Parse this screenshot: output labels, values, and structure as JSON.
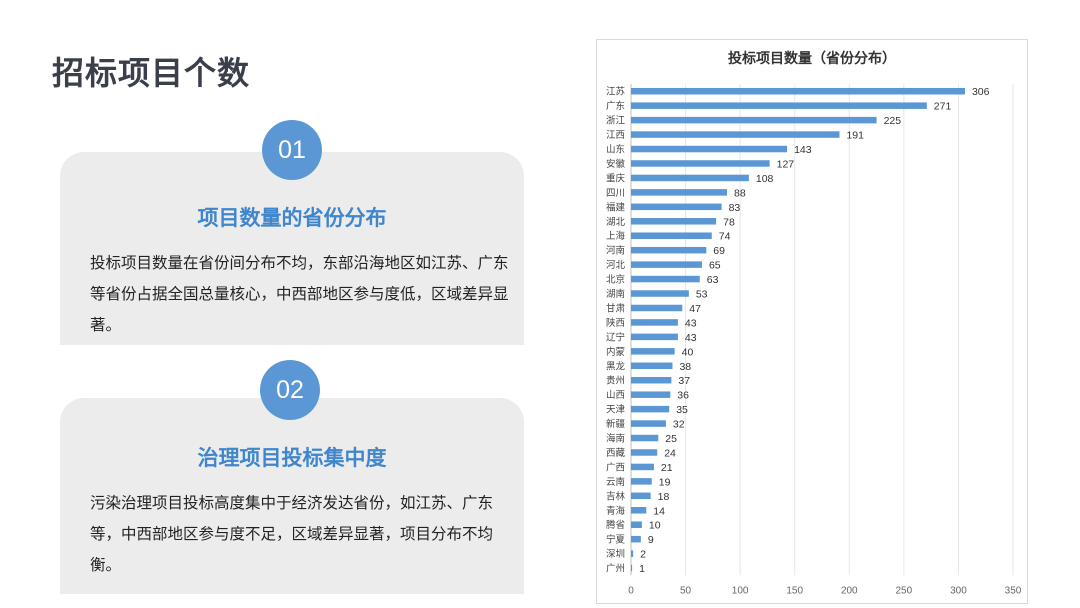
{
  "page": {
    "title": "招标项目个数"
  },
  "cards": [
    {
      "number": "01",
      "heading": "项目数量的省份分布",
      "body": "投标项目数量在省份间分布不均，东部沿海地区如江苏、广东等省份占据全国总量核心，中西部地区参与度低，区域差异显著。"
    },
    {
      "number": "02",
      "heading": "治理项目投标集中度",
      "body": "污染治理项目投标高度集中于经济发达省份，如江苏、广东等，中西部地区参与度不足，区域差异显著，项目分布不均衡。"
    }
  ],
  "chart_data": {
    "type": "bar",
    "orientation": "horizontal",
    "title": "投标项目数量（省份分布）",
    "xlabel": "",
    "ylabel": "",
    "xlim": [
      0,
      350
    ],
    "xticks": [
      0,
      50,
      100,
      150,
      200,
      250,
      300,
      350
    ],
    "grid": true,
    "bar_color": "#5b97d5",
    "categories": [
      "江苏",
      "广东",
      "浙江",
      "江西",
      "山东",
      "安徽",
      "重庆",
      "四川",
      "福建",
      "湖北",
      "上海",
      "河南",
      "河北",
      "北京",
      "湖南",
      "甘肃",
      "陕西",
      "辽宁",
      "内蒙",
      "黑龙",
      "贵州",
      "山西",
      "天津",
      "新疆",
      "海南",
      "西藏",
      "广西",
      "云南",
      "吉林",
      "青海",
      "腾省",
      "宁夏",
      "深圳",
      "广州"
    ],
    "values": [
      306,
      271,
      225,
      191,
      143,
      127,
      108,
      88,
      83,
      78,
      74,
      69,
      65,
      63,
      53,
      47,
      43,
      43,
      40,
      38,
      37,
      36,
      35,
      32,
      25,
      24,
      21,
      19,
      18,
      14,
      10,
      9,
      2,
      1
    ]
  }
}
